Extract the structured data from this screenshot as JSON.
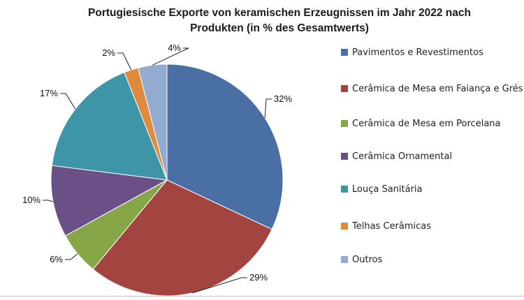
{
  "title_lines": [
    "Portugiesische Exporte von keramischen Erzeugnissen im Jahr 2022 nach",
    "Produkten (in % des Gesamtwerts)"
  ],
  "chart_data": {
    "type": "pie",
    "title": "Portugiesische Exporte von keramischen Erzeugnissen im Jahr 2022 nach Produkten (in % des Gesamtwerts)",
    "legend_position": "right",
    "slices": [
      {
        "label": "Pavimentos e Revestimentos",
        "value": 32,
        "display": "32%",
        "color": "#4a6fa5"
      },
      {
        "label": "Cerâmica de Mesa em Faiança e Grés",
        "value": 29,
        "display": "29%",
        "color": "#a44441"
      },
      {
        "label": "Cerâmica de Mesa em Porcelana",
        "value": 6,
        "display": "6%",
        "color": "#86a648"
      },
      {
        "label": "Cerâmica Ornamental",
        "value": 10,
        "display": "10%",
        "color": "#6b5088"
      },
      {
        "label": "Louça Sanitária",
        "value": 17,
        "display": "17%",
        "color": "#3f95a8"
      },
      {
        "label": "Telhas Cerâmicas",
        "value": 2,
        "display": "2%",
        "color": "#df8a3c"
      },
      {
        "label": "Outros",
        "value": 4,
        "display": "4%",
        "color": "#94abd0"
      }
    ]
  }
}
